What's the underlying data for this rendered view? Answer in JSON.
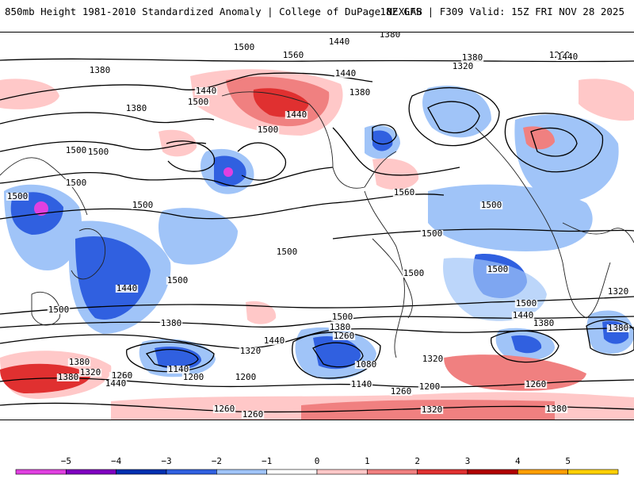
{
  "header": {
    "title_left": "850mb Height 1981-2010 Standardized Anomaly | College of DuPage NEXLAB",
    "title_right": "18Z GFS | F309 Valid: 15Z FRI NOV 28 2025"
  },
  "map": {
    "contour_labels": [
      {
        "text": "1260"
      },
      {
        "text": "1320"
      },
      {
        "text": "1380"
      },
      {
        "text": "1500"
      },
      {
        "text": "1560"
      },
      {
        "text": "1440"
      },
      {
        "text": "1380"
      },
      {
        "text": "1320"
      },
      {
        "text": "1260"
      },
      {
        "text": "1380"
      },
      {
        "text": "1440"
      },
      {
        "text": "1320"
      },
      {
        "text": "1440"
      },
      {
        "text": "1380"
      },
      {
        "text": "1500"
      },
      {
        "text": "1440"
      },
      {
        "text": "1500"
      },
      {
        "text": "1440"
      },
      {
        "text": "1500"
      },
      {
        "text": "1500"
      },
      {
        "text": "1380"
      },
      {
        "text": "1500"
      },
      {
        "text": "1560"
      },
      {
        "text": "1500"
      },
      {
        "text": "1500"
      },
      {
        "text": "1500"
      },
      {
        "text": "1500"
      },
      {
        "text": "1500"
      },
      {
        "text": "1500"
      },
      {
        "text": "1500"
      },
      {
        "text": "1500"
      },
      {
        "text": "1440"
      },
      {
        "text": "1500"
      },
      {
        "text": "1500"
      },
      {
        "text": "1500"
      },
      {
        "text": "1380"
      },
      {
        "text": "1440"
      },
      {
        "text": "1380"
      },
      {
        "text": "1320"
      },
      {
        "text": "1260"
      },
      {
        "text": "1140"
      },
      {
        "text": "1200"
      },
      {
        "text": "1080"
      },
      {
        "text": "1200"
      },
      {
        "text": "1140"
      },
      {
        "text": "1320"
      },
      {
        "text": "1260"
      },
      {
        "text": "1440"
      },
      {
        "text": "1380"
      },
      {
        "text": "1260"
      },
      {
        "text": "1380"
      },
      {
        "text": "1320"
      },
      {
        "text": "1380"
      },
      {
        "text": "1260"
      },
      {
        "text": "1440"
      },
      {
        "text": "1260"
      },
      {
        "text": "1200"
      },
      {
        "text": "1320"
      },
      {
        "text": "1380"
      },
      {
        "text": "1320"
      },
      {
        "text": "1260"
      },
      {
        "text": "1380"
      },
      {
        "text": "1380"
      },
      {
        "text": "1260"
      }
    ]
  },
  "colorbar": {
    "ticks": [
      "−5",
      "−4",
      "−3",
      "−2",
      "−1",
      "0",
      "1",
      "2",
      "3",
      "4",
      "5"
    ],
    "colors": [
      "#e040e0",
      "#8000c0",
      "#0030b0",
      "#3060e0",
      "#a0c4f8",
      "#ffffff",
      "#ffc8c8",
      "#f08080",
      "#e03030",
      "#b00000",
      "#ff9f00",
      "#ffd000"
    ]
  }
}
